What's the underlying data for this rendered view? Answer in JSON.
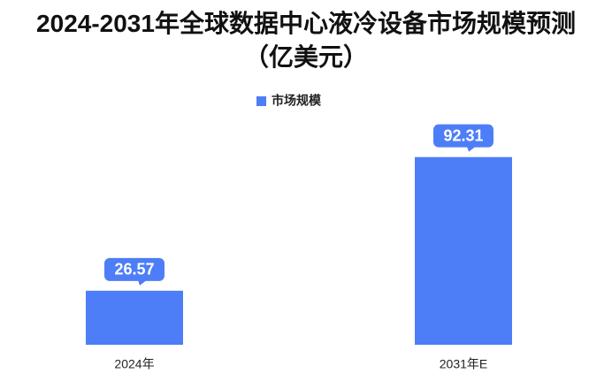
{
  "chart_data": {
    "type": "bar",
    "title": "2024-2031年全球数据中心液冷设备市场规模预测（亿美元）",
    "categories": [
      "2024年",
      "2031年E"
    ],
    "series": [
      {
        "name": "市场规模",
        "color": "#4d7ef7",
        "values": [
          26.57,
          92.31
        ]
      }
    ],
    "ylim": [
      0,
      100
    ],
    "grid": false
  }
}
